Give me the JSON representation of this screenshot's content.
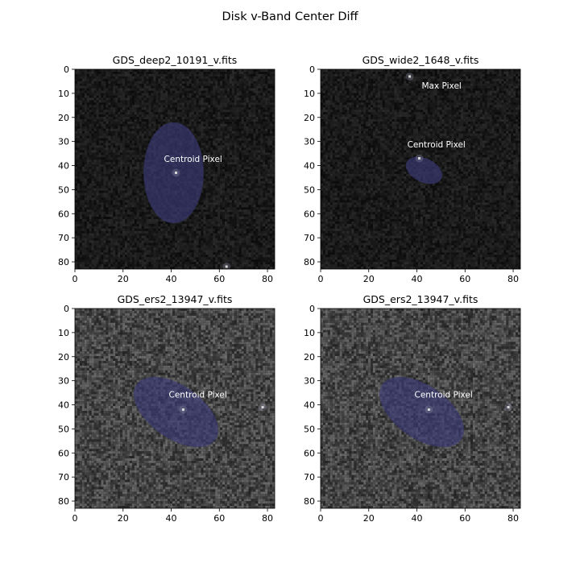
{
  "figure": {
    "title": "Disk v-Band Center Diff"
  },
  "colors": {
    "background_dark": "#151515",
    "noise_light": "#5a5a5a",
    "ellipse_fill": "#3a3a78",
    "marker": "#d8d8d8",
    "text_annotation": "#ffffff"
  },
  "chart_data": [
    {
      "type": "heatmap",
      "title": "GDS_deep2_10191_v.fits",
      "xlim": [
        0,
        83
      ],
      "ylim": [
        83,
        0
      ],
      "xticks": [
        0,
        20,
        40,
        60,
        80
      ],
      "yticks": [
        0,
        10,
        20,
        30,
        40,
        50,
        60,
        70,
        80
      ],
      "noise": "low",
      "grid": false,
      "ellipse": {
        "cx": 41,
        "cy": 43,
        "rx": 12.5,
        "ry": 21,
        "angle": 0
      },
      "markers": [
        {
          "x": 42,
          "y": 43,
          "label": "Centroid Pixel"
        },
        {
          "x": 63,
          "y": 82,
          "label": ""
        }
      ],
      "annotations": [
        {
          "text": "Centroid Pixel",
          "x": 37,
          "y": 38.5
        }
      ]
    },
    {
      "type": "heatmap",
      "title": "GDS_wide2_1648_v.fits",
      "xlim": [
        0,
        83
      ],
      "ylim": [
        83,
        0
      ],
      "xticks": [
        0,
        20,
        40,
        60,
        80
      ],
      "yticks": [
        0,
        10,
        20,
        30,
        40,
        50,
        60,
        70,
        80
      ],
      "noise": "low",
      "grid": false,
      "ellipse": {
        "cx": 43,
        "cy": 42,
        "rx": 8,
        "ry": 5,
        "angle": 25
      },
      "markers": [
        {
          "x": 41,
          "y": 37,
          "label": "Centroid Pixel"
        },
        {
          "x": 37,
          "y": 3,
          "label": "Max Pixel"
        }
      ],
      "annotations": [
        {
          "text": "Max Pixel",
          "x": 42,
          "y": 8
        },
        {
          "text": "Centroid Pixel",
          "x": 36,
          "y": 32.5
        }
      ]
    },
    {
      "type": "heatmap",
      "title": "GDS_ers2_13947_v.fits",
      "xlim": [
        0,
        83
      ],
      "ylim": [
        83,
        0
      ],
      "xticks": [
        0,
        20,
        40,
        60,
        80
      ],
      "yticks": [
        0,
        10,
        20,
        30,
        40,
        50,
        60,
        70,
        80
      ],
      "noise": "high",
      "grid": false,
      "ellipse": {
        "cx": 42,
        "cy": 43,
        "rx": 20,
        "ry": 11,
        "angle": 35
      },
      "markers": [
        {
          "x": 45,
          "y": 42,
          "label": "Centroid Pixel"
        },
        {
          "x": 78,
          "y": 41,
          "label": ""
        }
      ],
      "annotations": [
        {
          "text": "Centroid Pixel",
          "x": 39,
          "y": 37
        }
      ]
    },
    {
      "type": "heatmap",
      "title": "GDS_ers2_13947_v.fits",
      "xlim": [
        0,
        83
      ],
      "ylim": [
        83,
        0
      ],
      "xticks": [
        0,
        20,
        40,
        60,
        80
      ],
      "yticks": [
        0,
        10,
        20,
        30,
        40,
        50,
        60,
        70,
        80
      ],
      "noise": "high",
      "grid": false,
      "ellipse": {
        "cx": 42,
        "cy": 43,
        "rx": 20,
        "ry": 11,
        "angle": 35
      },
      "markers": [
        {
          "x": 45,
          "y": 42,
          "label": "Centroid Pixel"
        },
        {
          "x": 78,
          "y": 41,
          "label": ""
        }
      ],
      "annotations": [
        {
          "text": "Centroid Pixel",
          "x": 39,
          "y": 37
        }
      ]
    }
  ]
}
